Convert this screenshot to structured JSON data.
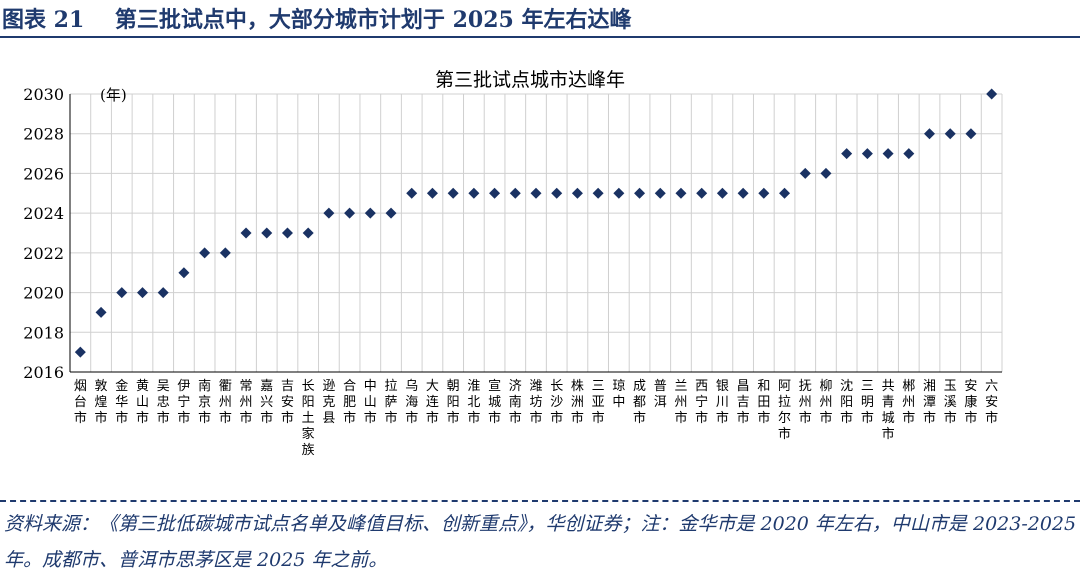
{
  "figure": {
    "label": "图表 21",
    "heading": "第三批试点中，大部分城市计划于 2025 年左右达峰",
    "source": "资料来源：《第三批低碳城市试点名单及峰值目标、创新重点》，华创证券；注：金华市是 2020 年左右，中山市是 2023-2025 年。成都市、普洱市思茅区是 2025 年之前。"
  },
  "chart_data": {
    "type": "scatter",
    "title": "第三批试点城市达峰年",
    "unit_label": "(年)",
    "ylim": [
      2016,
      2030
    ],
    "yticks": [
      2016,
      2018,
      2020,
      2022,
      2024,
      2026,
      2028,
      2030
    ],
    "grid": true,
    "marker_color": "#1a3263",
    "categories": [
      "烟台市",
      "敦煌市",
      "金华市",
      "黄山市",
      "吴忠市",
      "伊宁市",
      "南京市",
      "衢州市",
      "常州市",
      "嘉兴市",
      "吉安市",
      "长阳土家族",
      "逊克县",
      "合肥市",
      "中山市",
      "拉萨市",
      "乌海市",
      "大连市",
      "朝阳市",
      "淮北市",
      "宣城市",
      "济南市",
      "潍坊市",
      "长沙市",
      "株洲市",
      "三亚市",
      "琼中",
      "成都市",
      "普洱",
      "兰州市",
      "西宁市",
      "银川市",
      "昌吉市",
      "和田市",
      "阿拉尔市",
      "抚州市",
      "柳州市",
      "沈阳市",
      "三明市",
      "共青城市",
      "郴州市",
      "湘潭市",
      "玉溪市",
      "安康市",
      "六安市"
    ],
    "values": [
      2017,
      2019,
      2020,
      2020,
      2020,
      2021,
      2022,
      2022,
      2023,
      2023,
      2023,
      2023,
      2024,
      2024,
      2024,
      2024,
      2025,
      2025,
      2025,
      2025,
      2025,
      2025,
      2025,
      2025,
      2025,
      2025,
      2025,
      2025,
      2025,
      2025,
      2025,
      2025,
      2025,
      2025,
      2025,
      2026,
      2026,
      2027,
      2027,
      2027,
      2027,
      2028,
      2028,
      2028,
      2030
    ]
  }
}
